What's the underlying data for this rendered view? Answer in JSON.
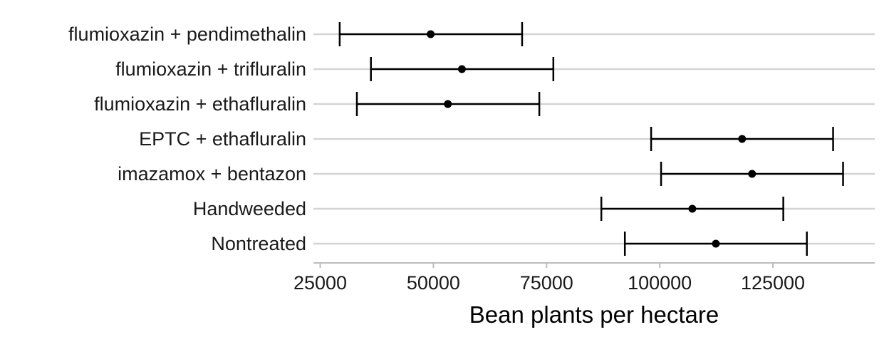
{
  "chart_data": {
    "type": "errorbar",
    "orientation": "horizontal",
    "categories": [
      "flumioxazin + pendimethalin",
      "flumioxazin + trifluralin",
      "flumioxazin + ethafluralin",
      "EPTC + ethafluralin",
      "imazamox + bentazon",
      "Handweeded",
      "Nontreated"
    ],
    "series": [
      {
        "mean": [
          49400,
          56300,
          53200,
          118200,
          120400,
          107200,
          112400
        ],
        "lower": [
          29300,
          36200,
          33100,
          98100,
          100300,
          87100,
          92300
        ],
        "upper": [
          69600,
          76500,
          73400,
          138300,
          140500,
          127300,
          132500
        ]
      }
    ],
    "xlabel": "Bean plants per hectare",
    "ylabel": "",
    "title": "",
    "xlim": [
      23500,
      147500
    ],
    "xticks": [
      25000,
      50000,
      75000,
      100000,
      125000
    ],
    "xtick_labels": [
      "25000",
      "50000",
      "75000",
      "100000",
      "125000"
    ],
    "grid": "horizontal",
    "colors": {
      "marks": "#000000",
      "grid": "#d4d4d4",
      "axis": "#bdbdbd"
    }
  }
}
